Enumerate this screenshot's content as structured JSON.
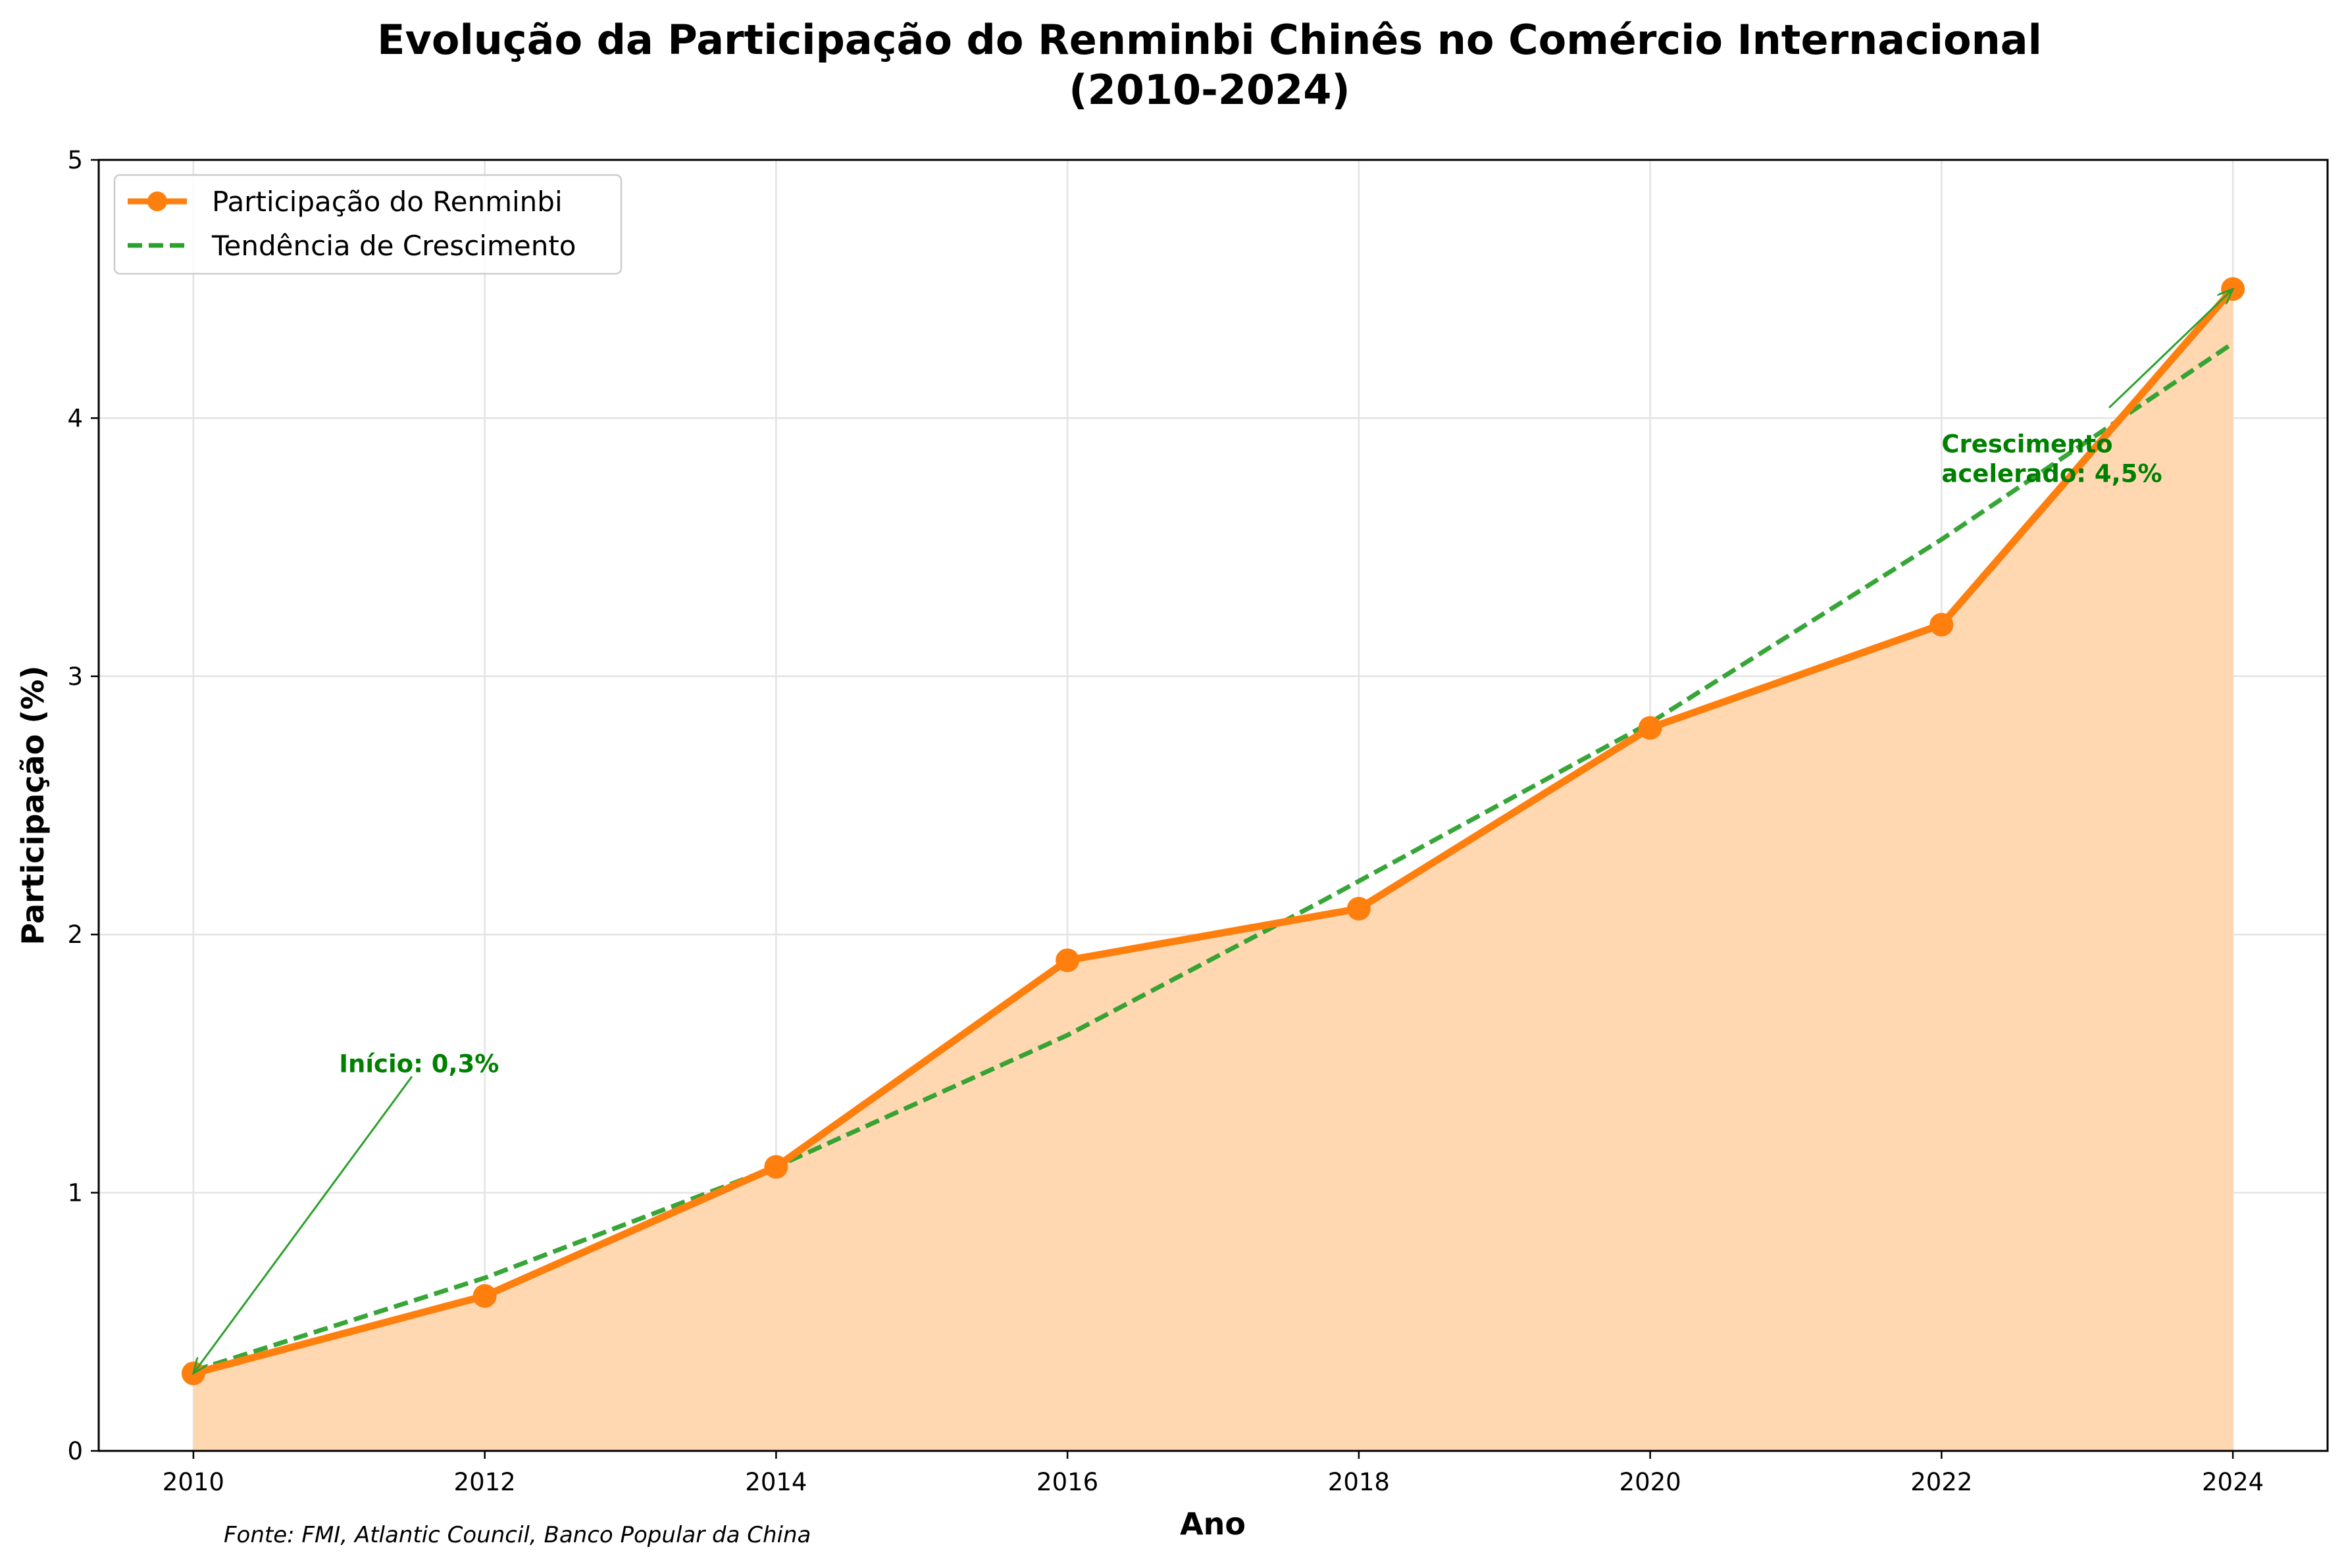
{
  "chart_data": {
    "type": "line",
    "title_line1": "Evolução da Participação do Renminbi Chinês no Comércio Internacional",
    "title_line2": "(2010-2024)",
    "xlabel": "Ano",
    "ylabel": "Participação (%)",
    "x": [
      2010,
      2012,
      2014,
      2016,
      2018,
      2020,
      2022,
      2024
    ],
    "xlim": [
      2009.35,
      2024.65
    ],
    "ylim": [
      0,
      5
    ],
    "xticks": [
      2010,
      2012,
      2014,
      2016,
      2018,
      2020,
      2022,
      2024
    ],
    "yticks": [
      0,
      1,
      2,
      3,
      4,
      5
    ],
    "grid": true,
    "legend_position": "top-left",
    "series": [
      {
        "name": "Participação do Renminbi",
        "values": [
          0.3,
          0.6,
          1.1,
          1.9,
          2.1,
          2.8,
          3.2,
          4.5
        ],
        "color": "#ff7f0e",
        "fill_color": "#ffd8b2",
        "style": "solid-with-markers-and-area"
      },
      {
        "name": "Tendência de Crescimento",
        "trend_points": [
          [
            2010,
            0.31
          ],
          [
            2012,
            0.67
          ],
          [
            2014,
            1.1
          ],
          [
            2016,
            1.61
          ],
          [
            2017.75,
            2.13
          ],
          [
            2020,
            2.82
          ],
          [
            2022,
            3.53
          ],
          [
            2024,
            4.29
          ]
        ],
        "color": "#2ca02c",
        "style": "dashed"
      }
    ],
    "annotations": [
      {
        "lines": [
          "Início: 0,3%"
        ],
        "text_x": 2011.0,
        "text_y": 1.5,
        "arrow_start": [
          2011.5,
          1.45
        ],
        "arrow_end": [
          2010,
          0.3
        ],
        "color": "#008000"
      },
      {
        "lines": [
          "Crescimento",
          "acelerado: 4,5%"
        ],
        "text_x": 2022.0,
        "text_y": 3.9,
        "arrow_start": [
          2023.15,
          4.04
        ],
        "arrow_end": [
          2024,
          4.5
        ],
        "color": "#008000"
      }
    ],
    "source": "Fonte: FMI, Atlantic Council, Banco Popular da China"
  }
}
